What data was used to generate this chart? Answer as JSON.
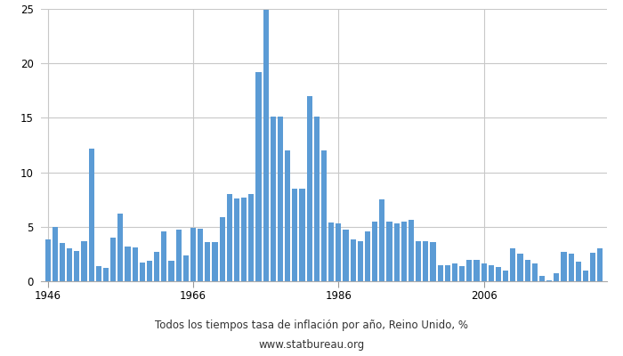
{
  "title": "Todos los tiempos tasa de inflación por año, Reino Unido, %",
  "subtitle": "www.statbureau.org",
  "bar_color": "#5b9bd5",
  "background_color": "#ffffff",
  "grid_color": "#c8c8c8",
  "ylim": [
    0,
    25
  ],
  "yticks": [
    0,
    5,
    10,
    15,
    20,
    25
  ],
  "xtick_years": [
    1946,
    1966,
    1986,
    2006
  ],
  "years": [
    1946,
    1947,
    1948,
    1949,
    1950,
    1951,
    1952,
    1953,
    1954,
    1955,
    1956,
    1957,
    1958,
    1959,
    1960,
    1961,
    1962,
    1963,
    1964,
    1965,
    1966,
    1967,
    1968,
    1969,
    1970,
    1971,
    1972,
    1973,
    1974,
    1975,
    1976,
    1977,
    1978,
    1979,
    1980,
    1981,
    1982,
    1983,
    1984,
    1985,
    1986,
    1987,
    1988,
    1989,
    1990,
    1991,
    1992,
    1993,
    1994,
    1995,
    1996,
    1997,
    1998,
    1999,
    2000,
    2001,
    2002,
    2003,
    2004,
    2005,
    2006,
    2007,
    2008,
    2009,
    2010,
    2011,
    2012,
    2013,
    2014,
    2015,
    2016,
    2017,
    2018,
    2019,
    2020,
    2021,
    2022
  ],
  "values": [
    3.8,
    5.0,
    3.5,
    3.0,
    2.8,
    3.7,
    12.2,
    1.4,
    1.2,
    4.0,
    6.2,
    3.2,
    3.1,
    1.7,
    1.9,
    2.7,
    4.6,
    1.9,
    4.7,
    2.4,
    4.9,
    4.8,
    3.6,
    3.6,
    5.9,
    8.0,
    7.6,
    7.7,
    8.0,
    19.2,
    24.9,
    15.1,
    15.1,
    12.0,
    8.5,
    8.5,
    17.0,
    15.1,
    12.0,
    5.4,
    5.3,
    4.7,
    3.8,
    3.7,
    4.6,
    5.5,
    7.5,
    5.5,
    5.3,
    5.5,
    5.6,
    3.7,
    3.7,
    3.6,
    1.5,
    1.5,
    1.6,
    1.4,
    2.0,
    2.0,
    1.6,
    1.5,
    1.3,
    1.0,
    3.0,
    2.5,
    2.0,
    1.6,
    0.5,
    0.1,
    0.7,
    2.7,
    2.5,
    1.8,
    1.0,
    2.6,
    3.0
  ]
}
